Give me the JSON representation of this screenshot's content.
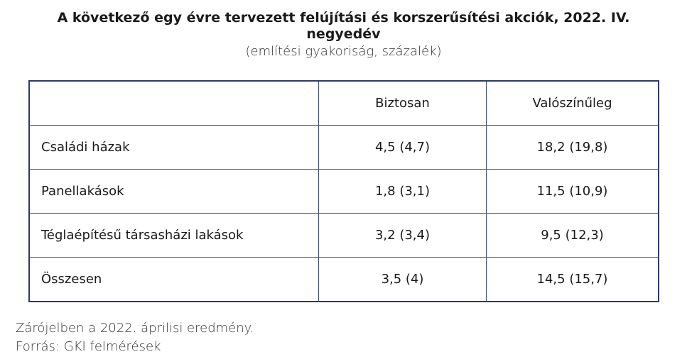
{
  "header": {
    "title": "A következő egy évre tervezett felújítási és korszerűsítési akciók, 2022. IV. negyedév",
    "subtitle": "(említési gyakoriság, százalék)"
  },
  "table": {
    "columns": [
      "Biztosan",
      "Valószínűleg"
    ],
    "rows": [
      [
        "Családi házak",
        "4,5 (4,7)",
        "18,2 (19,8)"
      ],
      [
        "Panellakások",
        "1,8 (3,1)",
        "11,5 (10,9)"
      ],
      [
        "Téglaépítésű társasházi lakások",
        "3,2 (3,4)",
        "9,5 (12,3)"
      ],
      [
        "Összesen",
        "3,5 (4)",
        "14,5 (15,7)"
      ]
    ]
  },
  "footer": {
    "note": "Zárójelben a 2022. áprilisi eredmény.",
    "source": "Forrás: GKI felmérések"
  }
}
